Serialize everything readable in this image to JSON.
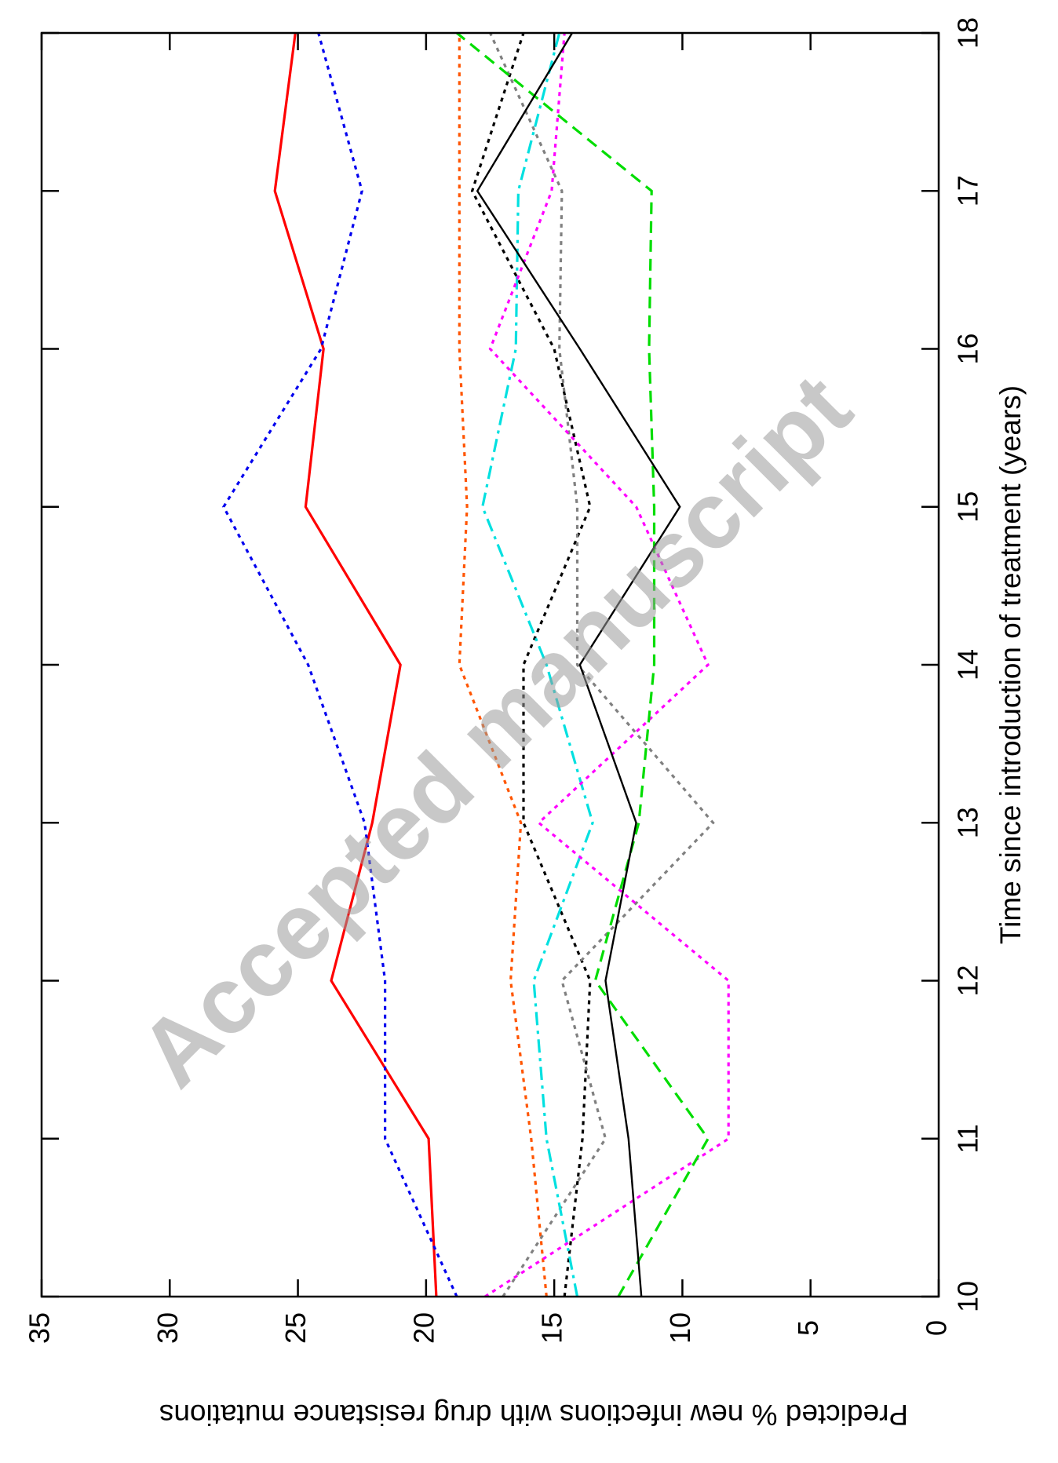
{
  "watermark": "Accepted manuscript",
  "chart_data": {
    "type": "line",
    "title": "",
    "xlabel": "Time since introduction of treatment (years)",
    "ylabel": "Predicted % new infections with drug resistance mutations",
    "x": [
      10,
      11,
      12,
      13,
      14,
      15,
      16,
      17,
      18
    ],
    "xlim": [
      10,
      18
    ],
    "ylim": [
      0,
      35
    ],
    "xticks": [
      "10",
      "11",
      "12",
      "13",
      "14",
      "15",
      "16",
      "17",
      "18"
    ],
    "yticks": [
      "0",
      "5",
      "10",
      "15",
      "20",
      "25",
      "30",
      "35"
    ],
    "grid": false,
    "legend": "none",
    "series": [
      {
        "color": "#ff0000",
        "style": "solid",
        "width": 3.2,
        "values": [
          19.6,
          19.9,
          23.7,
          22.1,
          21.0,
          24.7,
          24.0,
          25.9,
          25.1
        ]
      },
      {
        "color": "#0000ee",
        "style": "dotted",
        "width": 3.2,
        "values": [
          18.8,
          21.6,
          21.6,
          22.4,
          24.6,
          27.9,
          24.1,
          22.5,
          24.2
        ]
      },
      {
        "color": "#ff5500",
        "style": "dotted",
        "width": 3.2,
        "values": [
          15.3,
          15.9,
          16.7,
          16.3,
          18.7,
          18.4,
          18.7,
          18.7,
          18.7
        ]
      },
      {
        "color": "#000000",
        "style": "dotted",
        "width": 3.2,
        "values": [
          14.6,
          13.9,
          13.6,
          16.2,
          16.2,
          13.6,
          15.0,
          18.2,
          16.2
        ]
      },
      {
        "color": "#808080",
        "style": "dotted",
        "width": 3.2,
        "values": [
          17.0,
          13.0,
          14.7,
          8.8,
          14.1,
          14.1,
          14.8,
          14.7,
          17.5
        ]
      },
      {
        "color": "#00e0e0",
        "style": "dashdot",
        "width": 3.2,
        "values": [
          14.1,
          15.3,
          15.8,
          13.5,
          15.3,
          17.8,
          16.5,
          16.4,
          14.8
        ]
      },
      {
        "color": "#ff00ff",
        "style": "dotted",
        "width": 3.2,
        "values": [
          17.7,
          8.2,
          8.2,
          15.6,
          9.0,
          11.8,
          17.5,
          15.1,
          14.6
        ]
      },
      {
        "color": "#00dd00",
        "style": "dashed",
        "width": 3.2,
        "values": [
          12.5,
          9.0,
          13.4,
          11.7,
          11.1,
          11.1,
          11.3,
          11.2,
          18.8
        ]
      },
      {
        "color": "#000000",
        "style": "solid",
        "width": 2.4,
        "values": [
          11.6,
          12.1,
          13.0,
          11.8,
          14.0,
          10.1,
          14.0,
          18.0,
          14.3
        ]
      }
    ]
  }
}
